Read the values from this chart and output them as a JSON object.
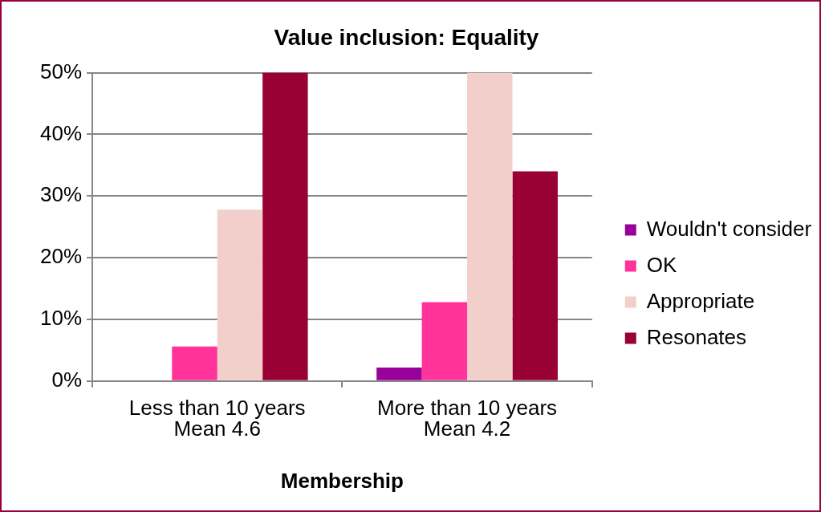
{
  "chart_data": {
    "type": "bar",
    "title": "Value inclusion: Equality",
    "xlabel": "Membership",
    "categories": [
      "Less than 10 years\nMean 4.6",
      "More than 10 years\nMean 4.2"
    ],
    "series": [
      {
        "name": "Wouldn't consider",
        "color": "#990099",
        "values": [
          0,
          2.2
        ]
      },
      {
        "name": "OK",
        "color": "#ff3399",
        "values": [
          5.6,
          12.8
        ]
      },
      {
        "name": "Appropriate",
        "color": "#f2cfcb",
        "values": [
          27.8,
          50
        ]
      },
      {
        "name": "Resonates",
        "color": "#990033",
        "values": [
          50,
          34
        ]
      }
    ],
    "ylim": [
      0,
      50
    ],
    "yticks": [
      {
        "value": 0,
        "label": "0%"
      },
      {
        "value": 10,
        "label": "10%"
      },
      {
        "value": 20,
        "label": "20%"
      },
      {
        "value": 30,
        "label": "30%"
      },
      {
        "value": 40,
        "label": "40%"
      },
      {
        "value": 50,
        "label": "50%"
      }
    ],
    "grid": "y",
    "legend": "right"
  }
}
